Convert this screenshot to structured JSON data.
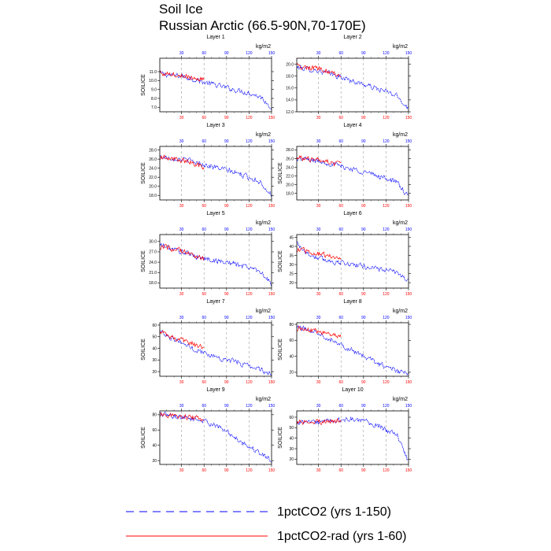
{
  "figure": {
    "title": "Soil Ice",
    "subtitle": "Russian Arctic (66.5-90N,70-170E)"
  },
  "legend": {
    "placement": "bottom",
    "entries": [
      {
        "label": "1pctCO2 (yrs 1-150)",
        "style": "dashed",
        "color": "#0000ff"
      },
      {
        "label": "1pctCO2-rad (yrs 1-60)",
        "style": "solid",
        "color": "#ff0000"
      }
    ]
  },
  "colors": {
    "series_a": "#0000ff",
    "series_b": "#ff0000",
    "top_axis": "#0000ff",
    "bottom_axis": "#ff0000"
  },
  "chart_data": [
    {
      "type": "line",
      "title": "Layer 1",
      "ylabel": "SOILICE",
      "units_label": "kg/m2",
      "xlim": [
        1,
        150
      ],
      "ylim": [
        6.5,
        12.5
      ],
      "yticks": [
        "7.0",
        "8.0",
        "9.0",
        "10.0",
        "11.0"
      ],
      "xticks": [
        "30",
        "60",
        "90",
        "120",
        "150"
      ],
      "grid_x": [
        30,
        60,
        90,
        120
      ],
      "series": [
        {
          "name": "1pctCO2 (yrs 1-150)",
          "x": [
            1,
            15,
            30,
            45,
            60,
            75,
            90,
            105,
            120,
            135,
            150
          ],
          "values": [
            10.8,
            10.6,
            10.5,
            10.2,
            9.8,
            9.5,
            9.2,
            8.9,
            8.6,
            8.2,
            7.0
          ]
        },
        {
          "name": "1pctCO2-rad (yrs 1-60)",
          "x": [
            1,
            15,
            30,
            45,
            60
          ],
          "values": [
            10.9,
            10.7,
            10.6,
            10.3,
            10.1
          ]
        }
      ]
    },
    {
      "type": "line",
      "title": "Layer 2",
      "ylabel": "",
      "units_label": "kg/m2",
      "xlim": [
        1,
        150
      ],
      "ylim": [
        12.0,
        21.0
      ],
      "yticks": [
        "12.0",
        "14.0",
        "16.0",
        "18.0",
        "20.0"
      ],
      "xticks": [
        "30",
        "60",
        "90",
        "120",
        "150"
      ],
      "grid_x": [
        30,
        60,
        90,
        120
      ],
      "series": [
        {
          "name": "1pctCO2 (yrs 1-150)",
          "x": [
            1,
            15,
            30,
            45,
            60,
            75,
            90,
            105,
            120,
            135,
            150
          ],
          "values": [
            19.5,
            19.2,
            18.9,
            18.4,
            17.8,
            17.2,
            16.6,
            16.0,
            15.4,
            14.6,
            12.6
          ]
        },
        {
          "name": "1pctCO2-rad (yrs 1-60)",
          "x": [
            1,
            15,
            30,
            45,
            60
          ],
          "values": [
            19.6,
            19.5,
            19.2,
            18.8,
            18.2
          ]
        }
      ]
    },
    {
      "type": "line",
      "title": "Layer 3",
      "ylabel": "SOILICE",
      "units_label": "kg/m2",
      "xlim": [
        1,
        150
      ],
      "ylim": [
        17.0,
        28.8
      ],
      "yticks": [
        "18.0",
        "20.0",
        "22.0",
        "24.0",
        "26.0",
        "28.0"
      ],
      "xticks": [
        "30",
        "60",
        "90",
        "120",
        "150"
      ],
      "grid_x": [
        30,
        60,
        90,
        120
      ],
      "series": [
        {
          "name": "1pctCO2 (yrs 1-150)",
          "x": [
            1,
            15,
            30,
            45,
            60,
            75,
            90,
            105,
            120,
            135,
            150
          ],
          "values": [
            26.5,
            26.3,
            26.0,
            25.5,
            24.8,
            24.2,
            23.6,
            22.8,
            22.0,
            21.0,
            18.0
          ]
        },
        {
          "name": "1pctCO2-rad (yrs 1-60)",
          "x": [
            1,
            15,
            30,
            45,
            60
          ],
          "values": [
            26.4,
            26.2,
            25.8,
            25.0,
            24.2
          ]
        }
      ]
    },
    {
      "type": "line",
      "title": "Layer 4",
      "ylabel": "SOILICE",
      "units_label": "kg/m2",
      "xlim": [
        1,
        150
      ],
      "ylim": [
        16.5,
        28.8
      ],
      "yticks": [
        "18.0",
        "20.0",
        "22.0",
        "24.0",
        "26.0",
        "28.0"
      ],
      "xticks": [
        "30",
        "60",
        "90",
        "120",
        "150"
      ],
      "grid_x": [
        30,
        60,
        90,
        120
      ],
      "series": [
        {
          "name": "1pctCO2 (yrs 1-150)",
          "x": [
            1,
            15,
            30,
            45,
            60,
            75,
            90,
            105,
            120,
            135,
            150
          ],
          "values": [
            26.0,
            25.8,
            25.4,
            24.9,
            24.2,
            23.6,
            23.0,
            22.2,
            21.5,
            20.5,
            17.0
          ]
        },
        {
          "name": "1pctCO2-rad (yrs 1-60)",
          "x": [
            1,
            15,
            30,
            45,
            60
          ],
          "values": [
            26.2,
            25.9,
            25.6,
            25.2,
            24.4
          ]
        }
      ]
    },
    {
      "type": "line",
      "title": "Layer 5",
      "ylabel": "SOILICE",
      "units_label": "kg/m2",
      "xlim": [
        1,
        150
      ],
      "ylim": [
        16.5,
        32.0
      ],
      "yticks": [
        "18.0",
        "21.0",
        "24.0",
        "27.0",
        "30.0"
      ],
      "xticks": [
        "30",
        "60",
        "90",
        "120",
        "150"
      ],
      "grid_x": [
        30,
        60,
        90,
        120
      ],
      "series": [
        {
          "name": "1pctCO2 (yrs 1-150)",
          "x": [
            1,
            15,
            30,
            45,
            60,
            75,
            90,
            105,
            120,
            135,
            150
          ],
          "values": [
            29.0,
            28.0,
            27.0,
            26.0,
            25.0,
            24.5,
            24.0,
            23.3,
            22.5,
            21.5,
            17.5
          ]
        },
        {
          "name": "1pctCO2-rad (yrs 1-60)",
          "x": [
            1,
            15,
            30,
            45,
            60
          ],
          "values": [
            28.5,
            28.0,
            27.2,
            26.0,
            25.0
          ]
        }
      ]
    },
    {
      "type": "line",
      "title": "Layer 6",
      "ylabel": "SOILICE",
      "units_label": "kg/m2",
      "xlim": [
        1,
        150
      ],
      "ylim": [
        17.0,
        46.5
      ],
      "yticks": [
        "20",
        "25",
        "30",
        "35",
        "40",
        "45"
      ],
      "xticks": [
        "30",
        "60",
        "90",
        "120",
        "150"
      ],
      "grid_x": [
        30,
        60,
        90,
        120
      ],
      "series": [
        {
          "name": "1pctCO2 (yrs 1-150)",
          "x": [
            1,
            15,
            30,
            45,
            60,
            75,
            90,
            105,
            120,
            135,
            150
          ],
          "values": [
            42.0,
            36.0,
            33.5,
            32.0,
            31.0,
            30.0,
            29.0,
            28.0,
            27.0,
            25.5,
            21.0
          ]
        },
        {
          "name": "1pctCO2-rad (yrs 1-60)",
          "x": [
            1,
            15,
            30,
            45,
            60
          ],
          "values": [
            38.0,
            37.5,
            36.0,
            34.5,
            33.0
          ]
        }
      ]
    },
    {
      "type": "line",
      "title": "Layer 7",
      "ylabel": "SOILICE",
      "units_label": "kg/m2",
      "xlim": [
        1,
        150
      ],
      "ylim": [
        16.0,
        62.0
      ],
      "yticks": [
        "20",
        "30",
        "40",
        "50",
        "60"
      ],
      "xticks": [
        "30",
        "60",
        "90",
        "120",
        "150"
      ],
      "grid_x": [
        30,
        60,
        90,
        120
      ],
      "series": [
        {
          "name": "1pctCO2 (yrs 1-150)",
          "x": [
            1,
            15,
            30,
            45,
            60,
            75,
            90,
            105,
            120,
            135,
            150
          ],
          "values": [
            55.0,
            50.0,
            45.0,
            40.0,
            36.0,
            33.0,
            30.0,
            28.0,
            25.0,
            22.0,
            18.0
          ]
        },
        {
          "name": "1pctCO2-rad (yrs 1-60)",
          "x": [
            1,
            15,
            30,
            45,
            60
          ],
          "values": [
            54.0,
            51.0,
            47.0,
            44.0,
            40.0
          ]
        }
      ]
    },
    {
      "type": "line",
      "title": "Layer 8",
      "ylabel": "SOILICE",
      "units_label": "kg/m2",
      "xlim": [
        1,
        150
      ],
      "ylim": [
        15.0,
        82.0
      ],
      "yticks": [
        "20",
        "40",
        "60",
        "80"
      ],
      "xticks": [
        "30",
        "60",
        "90",
        "120",
        "150"
      ],
      "grid_x": [
        30,
        60,
        90,
        120
      ],
      "series": [
        {
          "name": "1pctCO2 (yrs 1-150)",
          "x": [
            1,
            15,
            30,
            45,
            60,
            75,
            90,
            105,
            120,
            135,
            150
          ],
          "values": [
            76.0,
            74.0,
            70.0,
            62.0,
            55.0,
            47.0,
            40.0,
            33.0,
            27.0,
            22.0,
            17.0
          ]
        },
        {
          "name": "1pctCO2-rad (yrs 1-60)",
          "x": [
            1,
            15,
            30,
            45,
            60
          ],
          "values": [
            75.0,
            73.0,
            70.0,
            67.0,
            63.0
          ]
        }
      ]
    },
    {
      "type": "line",
      "title": "Layer 9",
      "ylabel": "SOILICE",
      "units_label": "kg/m2",
      "xlim": [
        1,
        150
      ],
      "ylim": [
        15.0,
        85.0
      ],
      "yticks": [
        "20",
        "40",
        "60",
        "80"
      ],
      "xticks": [
        "30",
        "60",
        "90",
        "120",
        "150"
      ],
      "grid_x": [
        30,
        60,
        90,
        120
      ],
      "series": [
        {
          "name": "1pctCO2 (yrs 1-150)",
          "x": [
            1,
            15,
            30,
            45,
            60,
            75,
            90,
            105,
            120,
            135,
            150
          ],
          "values": [
            80.0,
            79.0,
            77.0,
            75.0,
            72.0,
            66.0,
            58.0,
            48.0,
            38.0,
            30.0,
            20.0
          ]
        },
        {
          "name": "1pctCO2-rad (yrs 1-60)",
          "x": [
            1,
            15,
            30,
            45,
            60
          ],
          "values": [
            80.0,
            79.0,
            77.0,
            76.0,
            74.0
          ]
        }
      ]
    },
    {
      "type": "line",
      "title": "Layer 10",
      "ylabel": "SOILICE",
      "units_label": "kg/m2",
      "xlim": [
        1,
        150
      ],
      "ylim": [
        15.0,
        66.0
      ],
      "yticks": [
        "20",
        "30",
        "40",
        "50",
        "60"
      ],
      "xticks": [
        "30",
        "60",
        "90",
        "120",
        "150"
      ],
      "grid_x": [
        30,
        60,
        90,
        120
      ],
      "series": [
        {
          "name": "1pctCO2 (yrs 1-150)",
          "x": [
            1,
            15,
            30,
            45,
            60,
            75,
            90,
            105,
            120,
            135,
            150
          ],
          "values": [
            55.0,
            55.0,
            55.0,
            56.0,
            57.0,
            58.0,
            56.0,
            53.0,
            48.0,
            42.0,
            18.0
          ]
        },
        {
          "name": "1pctCO2-rad (yrs 1-60)",
          "x": [
            1,
            15,
            30,
            45,
            60
          ],
          "values": [
            55.0,
            55.0,
            55.5,
            56.0,
            57.0
          ]
        }
      ]
    }
  ]
}
